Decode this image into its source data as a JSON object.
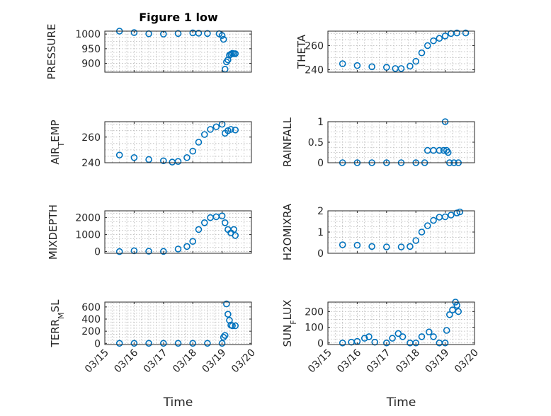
{
  "title": "Figure 1 low",
  "marker_color": "#0072BD",
  "grid_color": "#b4b4b4",
  "chart_data": [
    {
      "type": "scatter",
      "ylabel": "PRESSURE",
      "ylim": [
        870,
        1010
      ],
      "yticks": [
        {
          "v": 900,
          "label": "900"
        },
        {
          "v": 950,
          "label": "950"
        },
        {
          "v": 1000,
          "label": "1000"
        }
      ],
      "xlim": [
        0,
        5
      ],
      "xticks": [
        0,
        1,
        2,
        3,
        4,
        5
      ],
      "grid": true,
      "points": [
        [
          0.5,
          1010
        ],
        [
          1,
          1005
        ],
        [
          1.5,
          1001
        ],
        [
          2,
          1000
        ],
        [
          2.5,
          1002
        ],
        [
          3,
          1004
        ],
        [
          3.2,
          1003
        ],
        [
          3.5,
          1002
        ],
        [
          3.9,
          1001
        ],
        [
          4.0,
          995
        ],
        [
          4.05,
          982
        ],
        [
          4.1,
          880
        ],
        [
          4.15,
          905
        ],
        [
          4.2,
          912
        ],
        [
          4.25,
          928
        ],
        [
          4.3,
          931
        ],
        [
          4.35,
          934
        ],
        [
          4.4,
          933
        ],
        [
          4.45,
          933
        ]
      ],
      "x_axis_label": ""
    },
    {
      "type": "scatter",
      "ylabel": "THETA",
      "ylim": [
        238,
        272
      ],
      "yticks": [
        {
          "v": 240,
          "label": "240"
        },
        {
          "v": 260,
          "label": "260"
        }
      ],
      "xlim": [
        0,
        5
      ],
      "xticks": [
        0,
        1,
        2,
        3,
        4,
        5
      ],
      "grid": true,
      "points": [
        [
          0.5,
          245
        ],
        [
          1,
          243.5
        ],
        [
          1.5,
          242.5
        ],
        [
          2,
          242
        ],
        [
          2.3,
          241
        ],
        [
          2.5,
          241
        ],
        [
          2.8,
          243
        ],
        [
          3,
          247
        ],
        [
          3.2,
          254
        ],
        [
          3.4,
          260
        ],
        [
          3.6,
          264
        ],
        [
          3.8,
          266
        ],
        [
          4,
          268
        ],
        [
          4.2,
          270
        ],
        [
          4.4,
          270.5
        ],
        [
          4.7,
          270.5
        ]
      ],
      "x_axis_label": ""
    },
    {
      "type": "scatter",
      "ylabel": "AIR_TEMP",
      "ylim": [
        240,
        272
      ],
      "yticks": [
        {
          "v": 240,
          "label": "240"
        },
        {
          "v": 260,
          "label": "260"
        }
      ],
      "xlim": [
        0,
        5
      ],
      "xticks": [
        0,
        1,
        2,
        3,
        4,
        5
      ],
      "grid": true,
      "points": [
        [
          0.5,
          246
        ],
        [
          1,
          244
        ],
        [
          1.5,
          242.5
        ],
        [
          2,
          241.5
        ],
        [
          2.3,
          240.5
        ],
        [
          2.5,
          241
        ],
        [
          2.8,
          244
        ],
        [
          3,
          249
        ],
        [
          3.2,
          256
        ],
        [
          3.4,
          262
        ],
        [
          3.6,
          266
        ],
        [
          3.8,
          268
        ],
        [
          4,
          270
        ],
        [
          4.1,
          263
        ],
        [
          4.2,
          265
        ],
        [
          4.3,
          266
        ],
        [
          4.45,
          265.5
        ]
      ],
      "x_axis_label": ""
    },
    {
      "type": "scatter",
      "ylabel": "RAINFALL",
      "ylim": [
        0,
        1
      ],
      "yticks": [
        {
          "v": 0,
          "label": "0"
        },
        {
          "v": 0.5,
          "label": "0.5"
        },
        {
          "v": 1,
          "label": "1"
        }
      ],
      "xlim": [
        0,
        5
      ],
      "xticks": [
        0,
        1,
        2,
        3,
        4,
        5
      ],
      "grid": true,
      "points": [
        [
          0.5,
          0
        ],
        [
          1,
          0
        ],
        [
          1.5,
          0
        ],
        [
          2,
          0
        ],
        [
          2.5,
          0
        ],
        [
          3,
          0
        ],
        [
          3.3,
          0
        ],
        [
          3.4,
          0.3
        ],
        [
          3.6,
          0.3
        ],
        [
          3.8,
          0.3
        ],
        [
          3.95,
          0.3
        ],
        [
          4.0,
          1.0
        ],
        [
          4.05,
          0.3
        ],
        [
          4.1,
          0.25
        ],
        [
          4.15,
          0
        ],
        [
          4.3,
          0
        ],
        [
          4.45,
          0
        ]
      ],
      "x_axis_label": ""
    },
    {
      "type": "scatter",
      "ylabel": "MIXDEPTH",
      "ylim": [
        -100,
        2400
      ],
      "yticks": [
        {
          "v": 0,
          "label": "0"
        },
        {
          "v": 1000,
          "label": "1000"
        },
        {
          "v": 2000,
          "label": "2000"
        }
      ],
      "xlim": [
        0,
        5
      ],
      "xticks": [
        0,
        1,
        2,
        3,
        4,
        5
      ],
      "grid": true,
      "points": [
        [
          0.5,
          0
        ],
        [
          1,
          50
        ],
        [
          1.5,
          20
        ],
        [
          2,
          10
        ],
        [
          2.5,
          150
        ],
        [
          2.8,
          300
        ],
        [
          3,
          600
        ],
        [
          3.2,
          1300
        ],
        [
          3.4,
          1700
        ],
        [
          3.6,
          2000
        ],
        [
          3.8,
          2050
        ],
        [
          4,
          2100
        ],
        [
          4.1,
          1700
        ],
        [
          4.2,
          1300
        ],
        [
          4.3,
          1100
        ],
        [
          4.4,
          1300
        ],
        [
          4.45,
          950
        ]
      ],
      "x_axis_label": ""
    },
    {
      "type": "scatter",
      "ylabel": "H2OMIXRA",
      "ylim": [
        0,
        2
      ],
      "yticks": [
        {
          "v": 0,
          "label": "0"
        },
        {
          "v": 1,
          "label": "1"
        },
        {
          "v": 2,
          "label": "2"
        }
      ],
      "xlim": [
        0,
        5
      ],
      "xticks": [
        0,
        1,
        2,
        3,
        4,
        5
      ],
      "grid": true,
      "points": [
        [
          0.5,
          0.4
        ],
        [
          1,
          0.38
        ],
        [
          1.5,
          0.32
        ],
        [
          2,
          0.3
        ],
        [
          2.5,
          0.3
        ],
        [
          2.8,
          0.32
        ],
        [
          3,
          0.6
        ],
        [
          3.2,
          1.0
        ],
        [
          3.4,
          1.3
        ],
        [
          3.6,
          1.55
        ],
        [
          3.8,
          1.7
        ],
        [
          4,
          1.72
        ],
        [
          4.2,
          1.8
        ],
        [
          4.4,
          1.9
        ],
        [
          4.5,
          1.95
        ]
      ],
      "x_axis_label": ""
    },
    {
      "type": "scatter",
      "ylabel": "TERR_MSL",
      "ylim": [
        -20,
        680
      ],
      "yticks": [
        {
          "v": 0,
          "label": "0"
        },
        {
          "v": 200,
          "label": "200"
        },
        {
          "v": 400,
          "label": "400"
        },
        {
          "v": 600,
          "label": "600"
        }
      ],
      "xlim": [
        0,
        5
      ],
      "xticks": [
        {
          "v": 0,
          "label": "03/15"
        },
        {
          "v": 1,
          "label": "03/16"
        },
        {
          "v": 2,
          "label": "03/17"
        },
        {
          "v": 3,
          "label": "03/18"
        },
        {
          "v": 4,
          "label": "03/19"
        },
        {
          "v": 5,
          "label": "03/20"
        }
      ],
      "grid": true,
      "points": [
        [
          0.5,
          0
        ],
        [
          1,
          0
        ],
        [
          1.5,
          0
        ],
        [
          2,
          0
        ],
        [
          2.5,
          0
        ],
        [
          3,
          0
        ],
        [
          3.5,
          0
        ],
        [
          4,
          0
        ],
        [
          4.05,
          100
        ],
        [
          4.1,
          130
        ],
        [
          4.15,
          650
        ],
        [
          4.2,
          480
        ],
        [
          4.25,
          380
        ],
        [
          4.3,
          300
        ],
        [
          4.35,
          290
        ],
        [
          4.45,
          290
        ]
      ],
      "x_axis_label": "Time"
    },
    {
      "type": "scatter",
      "ylabel": "SUN_FLUX",
      "ylim": [
        -10,
        260
      ],
      "yticks": [
        {
          "v": 0,
          "label": "0"
        },
        {
          "v": 100,
          "label": "100"
        },
        {
          "v": 200,
          "label": "200"
        }
      ],
      "xlim": [
        0,
        5
      ],
      "xticks": [
        {
          "v": 0,
          "label": "03/15"
        },
        {
          "v": 1,
          "label": "03/16"
        },
        {
          "v": 2,
          "label": "03/17"
        },
        {
          "v": 3,
          "label": "03/18"
        },
        {
          "v": 4,
          "label": "03/19"
        },
        {
          "v": 5,
          "label": "03/20"
        }
      ],
      "grid": true,
      "points": [
        [
          0.5,
          0
        ],
        [
          0.8,
          5
        ],
        [
          1,
          10
        ],
        [
          1.25,
          30
        ],
        [
          1.4,
          40
        ],
        [
          1.6,
          5
        ],
        [
          2,
          0
        ],
        [
          2.2,
          30
        ],
        [
          2.4,
          60
        ],
        [
          2.55,
          40
        ],
        [
          2.8,
          0
        ],
        [
          3,
          0
        ],
        [
          3.2,
          40
        ],
        [
          3.45,
          70
        ],
        [
          3.6,
          40
        ],
        [
          3.8,
          0
        ],
        [
          4,
          0
        ],
        [
          4.05,
          80
        ],
        [
          4.15,
          180
        ],
        [
          4.25,
          210
        ],
        [
          4.35,
          260
        ],
        [
          4.4,
          240
        ],
        [
          4.45,
          200
        ]
      ],
      "x_axis_label": "Time"
    }
  ]
}
